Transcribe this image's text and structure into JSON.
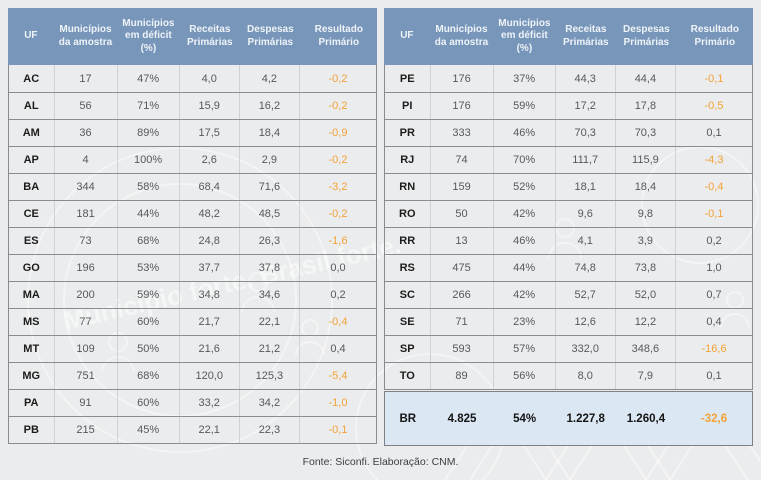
{
  "page": {
    "footer": "Fonte: Siconfi. Elaboração: CNM."
  },
  "colors": {
    "page_background": "#ebeced",
    "header_background": "#7796b9",
    "header_text": "#eef3f8",
    "body_text": "#56585a",
    "uf_text": "#1c1c1c",
    "negative_value": "#f4a136",
    "row_separator": "#8a8c8f",
    "column_separator": "#d1d2d3",
    "summary_background": "#dbe7f2"
  },
  "watermark": {
    "slogan": "Município forte. Brasil forte."
  },
  "columns": [
    "UF",
    "Municípios da amostra",
    "Municípios em déficit (%)",
    "Receitas Primárias",
    "Despesas Primárias",
    "Resultado Primário"
  ],
  "tables": [
    {
      "rows": [
        [
          "AC",
          "17",
          "47%",
          "4,0",
          "4,2",
          "-0,2"
        ],
        [
          "AL",
          "56",
          "71%",
          "15,9",
          "16,2",
          "-0,2"
        ],
        [
          "AM",
          "36",
          "89%",
          "17,5",
          "18,4",
          "-0,9"
        ],
        [
          "AP",
          "4",
          "100%",
          "2,6",
          "2,9",
          "-0,2"
        ],
        [
          "BA",
          "344",
          "58%",
          "68,4",
          "71,6",
          "-3,2"
        ],
        [
          "CE",
          "181",
          "44%",
          "48,2",
          "48,5",
          "-0,2"
        ],
        [
          "ES",
          "73",
          "68%",
          "24,8",
          "26,3",
          "-1,6"
        ],
        [
          "GO",
          "196",
          "53%",
          "37,7",
          "37,8",
          "0,0"
        ],
        [
          "MA",
          "200",
          "59%",
          "34,8",
          "34,6",
          "0,2"
        ],
        [
          "MS",
          "77",
          "60%",
          "21,7",
          "22,1",
          "-0,4"
        ],
        [
          "MT",
          "109",
          "50%",
          "21,6",
          "21,2",
          "0,4"
        ],
        [
          "MG",
          "751",
          "68%",
          "120,0",
          "125,3",
          "-5,4"
        ],
        [
          "PA",
          "91",
          "60%",
          "33,2",
          "34,2",
          "-1,0"
        ],
        [
          "PB",
          "215",
          "45%",
          "22,1",
          "22,3",
          "-0,1"
        ]
      ]
    },
    {
      "rows": [
        [
          "PE",
          "176",
          "37%",
          "44,3",
          "44,4",
          "-0,1"
        ],
        [
          "PI",
          "176",
          "59%",
          "17,2",
          "17,8",
          "-0,5"
        ],
        [
          "PR",
          "333",
          "46%",
          "70,3",
          "70,3",
          "0,1"
        ],
        [
          "RJ",
          "74",
          "70%",
          "111,7",
          "115,9",
          "-4,3"
        ],
        [
          "RN",
          "159",
          "52%",
          "18,1",
          "18,4",
          "-0,4"
        ],
        [
          "RO",
          "50",
          "42%",
          "9,6",
          "9,8",
          "-0,1"
        ],
        [
          "RR",
          "13",
          "46%",
          "4,1",
          "3,9",
          "0,2"
        ],
        [
          "RS",
          "475",
          "44%",
          "74,8",
          "73,8",
          "1,0"
        ],
        [
          "SC",
          "266",
          "42%",
          "52,7",
          "52,0",
          "0,7"
        ],
        [
          "SE",
          "71",
          "23%",
          "12,6",
          "12,2",
          "0,4"
        ],
        [
          "SP",
          "593",
          "57%",
          "332,0",
          "348,6",
          "-16,6"
        ],
        [
          "TO",
          "89",
          "56%",
          "8,0",
          "7,9",
          "0,1"
        ]
      ]
    }
  ],
  "summary": [
    "BR",
    "4.825",
    "54%",
    "1.227,8",
    "1.260,4",
    "-32,6"
  ]
}
